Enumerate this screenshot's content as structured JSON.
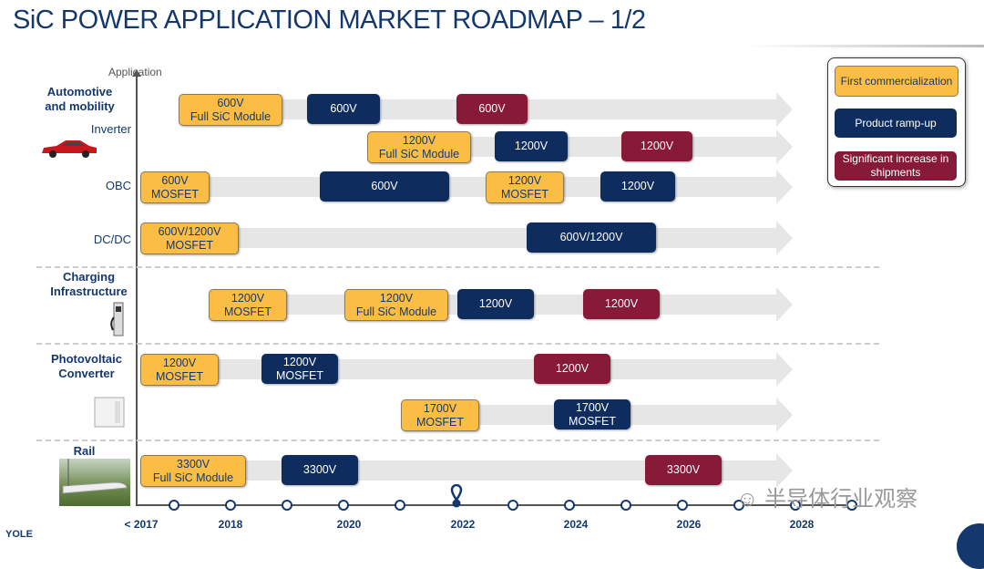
{
  "title": "SiC POWER APPLICATION MARKET ROADMAP – 1/2",
  "axis": {
    "y_label": "Application",
    "years": [
      "< 2017",
      "2018",
      "2020",
      "2022",
      "2024",
      "2026",
      "2028"
    ]
  },
  "colors": {
    "first": "#fbbd44",
    "ramp": "#0e2d5e",
    "increase": "#861a38",
    "title": "#14386e"
  },
  "legend": [
    {
      "status": "first",
      "label": "First commercialization"
    },
    {
      "status": "ramp",
      "label": "Product ramp-up"
    },
    {
      "status": "increase",
      "label": "Significant increase in shipments"
    }
  ],
  "categories": [
    {
      "label": "Automotive and mobility",
      "subs": [
        "Inverter",
        "OBC",
        "DC/DC"
      ],
      "icon": "car-icon"
    },
    {
      "label": "Charging Infrastructure",
      "subs": [],
      "icon": "charger-icon"
    },
    {
      "label": "Photovoltaic Converter",
      "subs": [],
      "icon": "inverter-cabinet-icon"
    },
    {
      "label": "Rail",
      "subs": [],
      "icon": "train-icon"
    }
  ],
  "boxes": [
    {
      "row": "inverter-600",
      "status": "first",
      "l1": "600V",
      "l2": "Full SiC Module"
    },
    {
      "row": "inverter-600",
      "status": "ramp",
      "l1": "600V",
      "l2": ""
    },
    {
      "row": "inverter-600",
      "status": "increase",
      "l1": "600V",
      "l2": ""
    },
    {
      "row": "inverter-1200",
      "status": "first",
      "l1": "1200V",
      "l2": "Full SiC Module"
    },
    {
      "row": "inverter-1200",
      "status": "ramp",
      "l1": "1200V",
      "l2": ""
    },
    {
      "row": "inverter-1200",
      "status": "increase",
      "l1": "1200V",
      "l2": ""
    },
    {
      "row": "obc",
      "status": "first",
      "l1": "600V",
      "l2": "MOSFET"
    },
    {
      "row": "obc",
      "status": "ramp",
      "l1": "600V",
      "l2": ""
    },
    {
      "row": "obc",
      "status": "first",
      "l1": "1200V",
      "l2": "MOSFET"
    },
    {
      "row": "obc",
      "status": "ramp",
      "l1": "1200V",
      "l2": ""
    },
    {
      "row": "dcdc",
      "status": "first",
      "l1": "600V/1200V",
      "l2": "MOSFET"
    },
    {
      "row": "dcdc",
      "status": "ramp",
      "l1": "600V/1200V",
      "l2": ""
    },
    {
      "row": "charging",
      "status": "first",
      "l1": "1200V",
      "l2": "MOSFET"
    },
    {
      "row": "charging",
      "status": "first",
      "l1": "1200V",
      "l2": "Full SiC Module"
    },
    {
      "row": "charging",
      "status": "ramp",
      "l1": "1200V",
      "l2": ""
    },
    {
      "row": "charging",
      "status": "increase",
      "l1": "1200V",
      "l2": ""
    },
    {
      "row": "pv-1200",
      "status": "first",
      "l1": "1200V",
      "l2": "MOSFET"
    },
    {
      "row": "pv-1200",
      "status": "ramp",
      "l1": "1200V",
      "l2": "MOSFET"
    },
    {
      "row": "pv-1200",
      "status": "increase",
      "l1": "1200V",
      "l2": ""
    },
    {
      "row": "pv-1700",
      "status": "first",
      "l1": "1700V",
      "l2": "MOSFET"
    },
    {
      "row": "pv-1700",
      "status": "ramp",
      "l1": "1700V",
      "l2": "MOSFET"
    },
    {
      "row": "rail",
      "status": "first",
      "l1": "3300V",
      "l2": "Full SiC Module"
    },
    {
      "row": "rail",
      "status": "ramp",
      "l1": "3300V",
      "l2": ""
    },
    {
      "row": "rail",
      "status": "increase",
      "l1": "3300V",
      "l2": ""
    }
  ],
  "watermark": "半导体行业观察",
  "logo": "YOLE"
}
